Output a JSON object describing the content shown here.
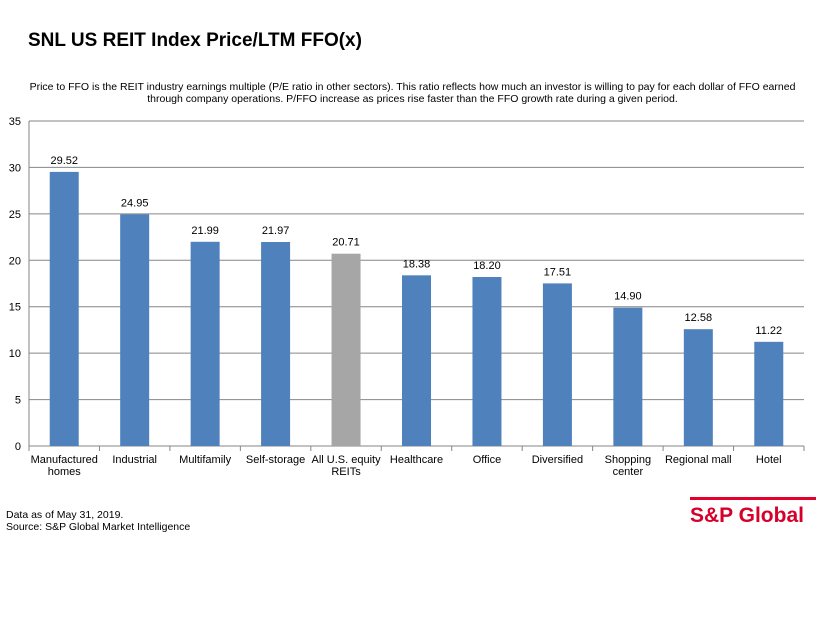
{
  "chart_data": {
    "type": "bar",
    "title": "SNL US REIT Index Price/LTM FFO(x)",
    "subtitle": "Price to FFO is the REIT industry earnings multiple (P/E ratio in other sectors). This ratio reflects how much an investor is willing to pay for each dollar of FFO earned through company operations. P/FFO increase as prices rise faster than the FFO growth rate during a given period.",
    "categories": [
      [
        "Manufactured",
        "homes"
      ],
      [
        "Industrial"
      ],
      [
        "Multifamily"
      ],
      [
        "Self-storage"
      ],
      [
        "All U.S. equity",
        "REITs"
      ],
      [
        "Healthcare"
      ],
      [
        "Office"
      ],
      [
        "Diversified"
      ],
      [
        "Shopping",
        "center"
      ],
      [
        "Regional mall"
      ],
      [
        "Hotel"
      ]
    ],
    "values": [
      29.52,
      24.95,
      21.99,
      21.97,
      20.71,
      18.38,
      18.2,
      17.51,
      14.9,
      12.58,
      11.22
    ],
    "value_labels": [
      "29.52",
      "24.95",
      "21.99",
      "21.97",
      "20.71",
      "18.38",
      "18.20",
      "17.51",
      "14.90",
      "12.58",
      "11.22"
    ],
    "highlight_index": 4,
    "ylim": [
      0,
      35
    ],
    "yticks": [
      0,
      5,
      10,
      15,
      20,
      25,
      30,
      35
    ],
    "grid": true,
    "legend": "none",
    "colors": {
      "bar": "#4f81bd",
      "highlight": "#a6a6a6",
      "grid": "#868686"
    }
  },
  "footnotes": {
    "date": "Data as of May 31, 2019.",
    "source": "Source: S&P Global Market Intelligence"
  },
  "logo": {
    "text": "S&P Global",
    "color": "#d6002a"
  }
}
